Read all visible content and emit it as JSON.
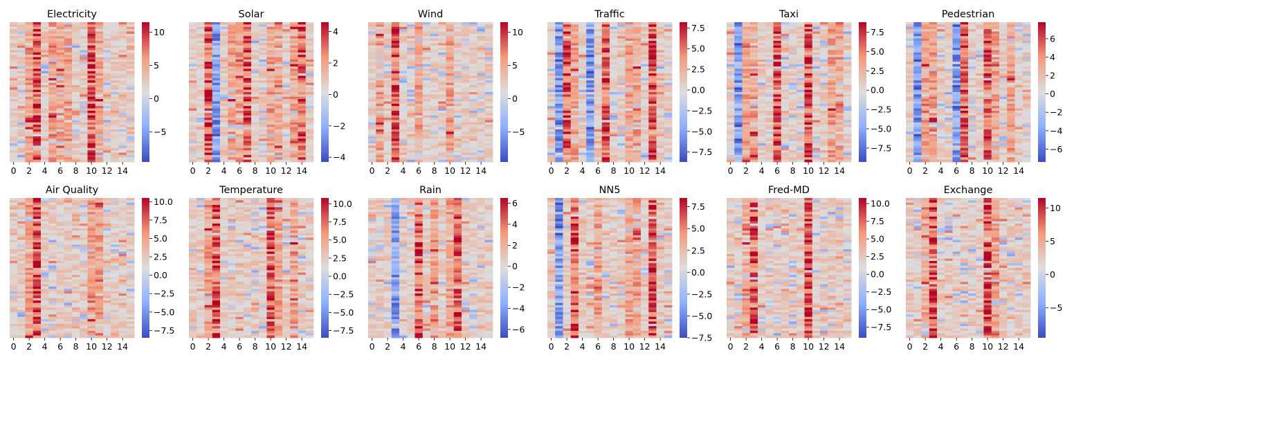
{
  "chart_data": [
    {
      "type": "heatmap",
      "title": "Electricity",
      "x_ticks": [
        "0",
        "2",
        "4",
        "6",
        "8",
        "10",
        "12",
        "14"
      ],
      "colorbar_ticks": [
        "10",
        "5",
        "0",
        "−5"
      ],
      "vmin": -9.5,
      "vmax": 11.5,
      "hot_columns": [
        3,
        10
      ],
      "cold_columns": [],
      "warm_columns": [
        2,
        5,
        6,
        7,
        11
      ]
    },
    {
      "type": "heatmap",
      "title": "Solar",
      "x_ticks": [
        "0",
        "2",
        "4",
        "6",
        "8",
        "10",
        "12",
        "14"
      ],
      "colorbar_ticks": [
        "4",
        "2",
        "0",
        "−2",
        "−4"
      ],
      "vmin": -4.3,
      "vmax": 4.6,
      "hot_columns": [
        2,
        7,
        14
      ],
      "cold_columns": [
        3
      ],
      "warm_columns": [
        5,
        6,
        10,
        11,
        13
      ]
    },
    {
      "type": "heatmap",
      "title": "Wind",
      "x_ticks": [
        "0",
        "2",
        "4",
        "6",
        "8",
        "10",
        "12",
        "14"
      ],
      "colorbar_ticks": [
        "10",
        "5",
        "0",
        "−5"
      ],
      "vmin": -9.5,
      "vmax": 11.5,
      "hot_columns": [
        3
      ],
      "cold_columns": [],
      "warm_columns": [
        10,
        1,
        6
      ]
    },
    {
      "type": "heatmap",
      "title": "Traffic",
      "x_ticks": [
        "0",
        "2",
        "4",
        "6",
        "8",
        "10",
        "12",
        "14"
      ],
      "colorbar_ticks": [
        "7.5",
        "5.0",
        "2.5",
        "0.0",
        "−2.5",
        "−5.0",
        "−7.5"
      ],
      "vmin": -8.7,
      "vmax": 8.2,
      "hot_columns": [
        2,
        7,
        13
      ],
      "cold_columns": [
        1,
        5
      ],
      "warm_columns": [
        3,
        10,
        11
      ]
    },
    {
      "type": "heatmap",
      "title": "Taxi",
      "x_ticks": [
        "0",
        "2",
        "4",
        "6",
        "8",
        "10",
        "12",
        "14"
      ],
      "colorbar_ticks": [
        "7.5",
        "5.0",
        "2.5",
        "0.0",
        "−2.5",
        "−5.0",
        "−7.5"
      ],
      "vmin": -9.3,
      "vmax": 8.8,
      "hot_columns": [
        6,
        10
      ],
      "cold_columns": [
        1
      ],
      "warm_columns": [
        2,
        3,
        13,
        14
      ]
    },
    {
      "type": "heatmap",
      "title": "Pedestrian",
      "x_ticks": [
        "0",
        "2",
        "4",
        "6",
        "8",
        "10",
        "12",
        "14"
      ],
      "colorbar_ticks": [
        "6",
        "4",
        "2",
        "0",
        "−2",
        "−4",
        "−6"
      ],
      "vmin": -7.4,
      "vmax": 7.8,
      "hot_columns": [
        7,
        10
      ],
      "cold_columns": [
        1,
        6
      ],
      "warm_columns": [
        2,
        3,
        11,
        13
      ]
    },
    {
      "type": "heatmap",
      "title": "Air Quality",
      "x_ticks": [
        "0",
        "2",
        "4",
        "6",
        "8",
        "10",
        "12",
        "14"
      ],
      "colorbar_ticks": [
        "10.0",
        "7.5",
        "5.0",
        "2.5",
        "0.0",
        "−2.5",
        "−5.0",
        "−7.5"
      ],
      "vmin": -8.5,
      "vmax": 10.5,
      "hot_columns": [
        3
      ],
      "cold_columns": [],
      "warm_columns": [
        10,
        2,
        11
      ]
    },
    {
      "type": "heatmap",
      "title": "Temperature",
      "x_ticks": [
        "0",
        "2",
        "4",
        "6",
        "8",
        "10",
        "12",
        "14"
      ],
      "colorbar_ticks": [
        "10.0",
        "7.5",
        "5.0",
        "2.5",
        "0.0",
        "−2.5",
        "−5.0",
        "−7.5"
      ],
      "vmin": -8.5,
      "vmax": 10.8,
      "hot_columns": [
        3,
        10
      ],
      "cold_columns": [],
      "warm_columns": [
        2,
        11,
        13
      ]
    },
    {
      "type": "heatmap",
      "title": "Rain",
      "x_ticks": [
        "0",
        "2",
        "4",
        "6",
        "8",
        "10",
        "12",
        "14"
      ],
      "colorbar_ticks": [
        "6",
        "4",
        "2",
        "0",
        "−2",
        "−4",
        "−6"
      ],
      "vmin": -6.8,
      "vmax": 6.5,
      "hot_columns": [
        6,
        11
      ],
      "cold_columns": [
        3
      ],
      "warm_columns": [
        10,
        8
      ]
    },
    {
      "type": "heatmap",
      "title": "NN5",
      "x_ticks": [
        "0",
        "2",
        "4",
        "6",
        "8",
        "10",
        "12",
        "14"
      ],
      "colorbar_ticks": [
        "7.5",
        "5.0",
        "2.5",
        "0.0",
        "−2.5",
        "−5.0",
        "−7.5"
      ],
      "vmin": -7.5,
      "vmax": 8.5,
      "hot_columns": [
        3,
        13
      ],
      "cold_columns": [
        1
      ],
      "warm_columns": [
        10,
        11,
        6
      ]
    },
    {
      "type": "heatmap",
      "title": "Fred-MD",
      "x_ticks": [
        "0",
        "2",
        "4",
        "6",
        "8",
        "10",
        "12",
        "14"
      ],
      "colorbar_ticks": [
        "10.0",
        "7.5",
        "5.0",
        "2.5",
        "0.0",
        "−2.5",
        "−5.0",
        "−7.5"
      ],
      "vmin": -9.0,
      "vmax": 10.8,
      "hot_columns": [
        3,
        10
      ],
      "cold_columns": [],
      "warm_columns": [
        2
      ]
    },
    {
      "type": "heatmap",
      "title": "Exchange",
      "x_ticks": [
        "0",
        "2",
        "4",
        "6",
        "8",
        "10",
        "12",
        "14"
      ],
      "colorbar_ticks": [
        "10",
        "5",
        "0",
        "−5"
      ],
      "vmin": -9.5,
      "vmax": 11.5,
      "hot_columns": [
        3,
        10
      ],
      "cold_columns": [],
      "warm_columns": [
        2,
        11
      ]
    }
  ],
  "colors": {
    "low": "#3b4cc0",
    "mid": "#dddddd",
    "high": "#b40426"
  }
}
